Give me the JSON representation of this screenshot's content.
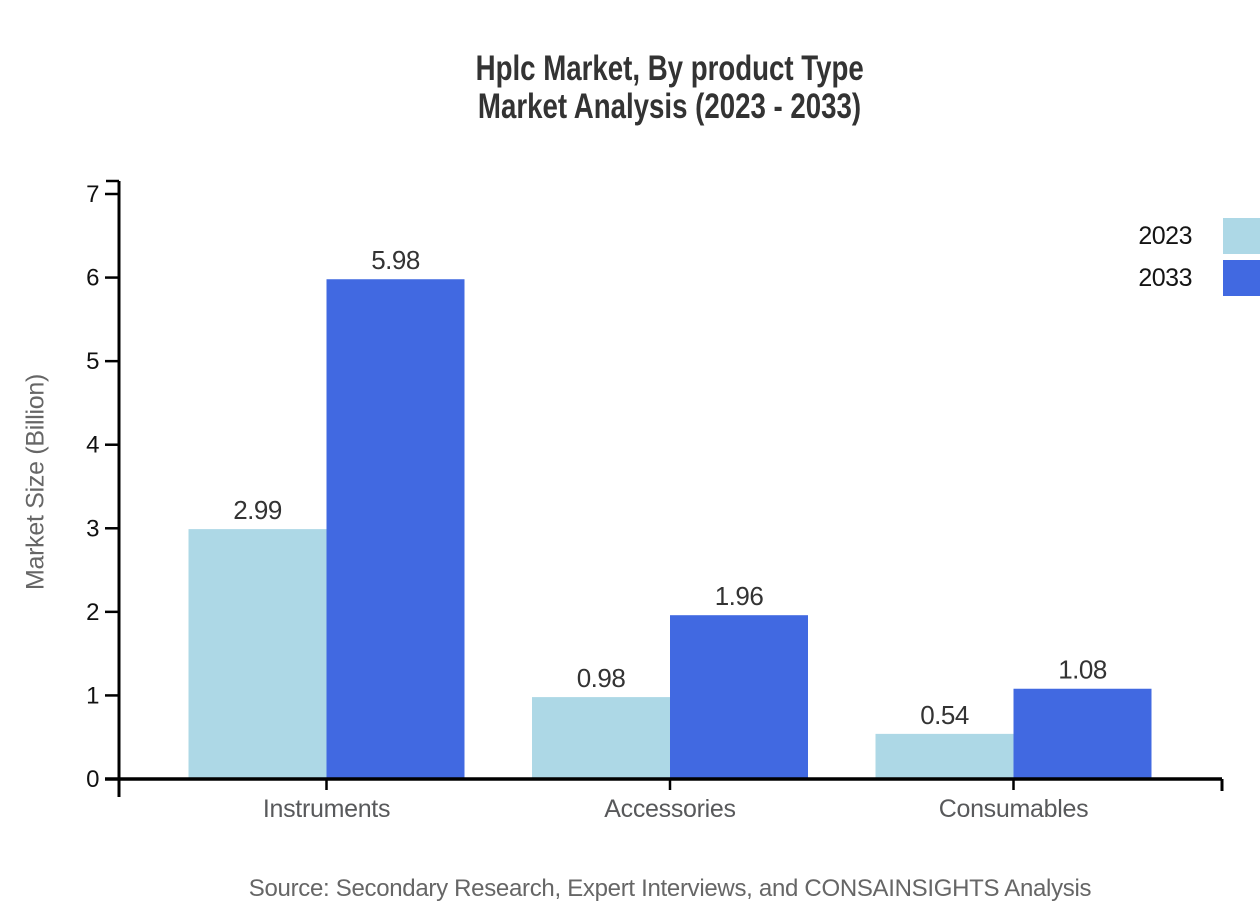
{
  "title": {
    "line1": "Hplc Market, By product Type",
    "line2": "Market Analysis (2023 - 2033)"
  },
  "source_note": "Source: Secondary Research, Expert Interviews, and CONSAINSIGHTS Analysis",
  "chart_data": {
    "type": "bar",
    "title": "Hplc Market, By product Type Market Analysis (2023 - 2033)",
    "categories": [
      "Instruments",
      "Accessories",
      "Consumables"
    ],
    "series": [
      {
        "name": "2023",
        "color": "#ADD8E6",
        "values": [
          2.99,
          0.98,
          0.54
        ]
      },
      {
        "name": "2033",
        "color": "#4169E1",
        "values": [
          5.98,
          1.96,
          1.08
        ]
      }
    ],
    "xlabel": "",
    "ylabel": "Market Size (Billion)",
    "ylim": [
      0,
      7
    ],
    "yticks": [
      0,
      1,
      2,
      3,
      4,
      5,
      6,
      7
    ],
    "grid": false,
    "legend_position": "top-right",
    "value_label_decimals": 2,
    "axis_color": "#000000",
    "value_label_color": "#333333",
    "category_label_color": "#58595B",
    "title_color": "#333333",
    "source_color": "#666666"
  }
}
